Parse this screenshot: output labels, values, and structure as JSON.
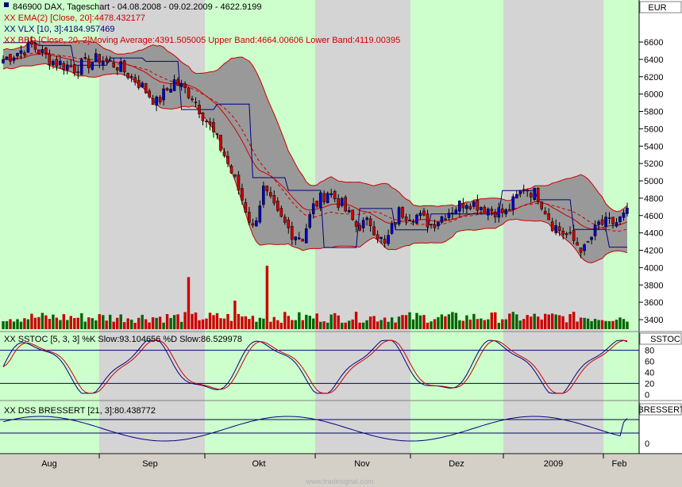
{
  "header": {
    "title": "846900  DAX, Tageschart - 04.08.2008 - 09.02.2009 - 4622.9199",
    "currency": "EUR",
    "legend": [
      {
        "text": "XX EMA(2) [Close, 20]:4478.432177",
        "color": "#cc0000"
      },
      {
        "text": "XX VLX [10, 3]:4184.957469",
        "color": "#000080"
      },
      {
        "text": "XX BBD [Close, 20, 2]Moving Average:4391.505005 Upper Band:4664.00606 Lower Band:4119.00395",
        "color": "#cc0000"
      }
    ]
  },
  "panels": {
    "sstoc": {
      "label": "XX SSTOC [5, 3, 3] %K Slow:93.104656 %D Slow:86.529978",
      "tag": "SSTOC",
      "ticks": [
        "80",
        "60",
        "40",
        "20",
        "0"
      ]
    },
    "dss": {
      "label": "XX DSS BRESSERT [21, 3]:80.438772",
      "tag": "BRESSERT",
      "ticks": [
        "0"
      ]
    }
  },
  "footer": {
    "watermark": "www.tradesignal.com"
  },
  "colors": {
    "up": "#0000cc",
    "down": "#cc0000",
    "vol_up": "#006400",
    "vol_down": "#cc0000",
    "band_fill": "#999999",
    "band_edge": "#cc0000",
    "ema": "#cc0000",
    "vlx": "#000080",
    "green_bg": "#ccffcc",
    "gray_bg": "#d4d4d4",
    "k_line": "#000080",
    "d_line": "#cc0000"
  },
  "chart_data": {
    "type": "candlestick",
    "title": "846900  DAX, Tageschart - 04.08.2008 - 09.02.2009 - 4622.9199",
    "y_axis": {
      "ticks": [
        3400,
        3600,
        3800,
        4000,
        4200,
        4400,
        4600,
        4800,
        5000,
        5200,
        5400,
        5600,
        5800,
        6000,
        6200,
        6400,
        6600
      ],
      "ylim": [
        3200,
        6820
      ]
    },
    "x_axis": {
      "month_labels": [
        "Aug",
        "Sep",
        "Okt",
        "Nov",
        "Dez",
        "2009",
        "Feb"
      ]
    },
    "ohlc_anchors_close": [
      [
        0,
        6400
      ],
      [
        8,
        6560
      ],
      [
        14,
        6380
      ],
      [
        20,
        6300
      ],
      [
        27,
        6410
      ],
      [
        32,
        6330
      ],
      [
        38,
        6130
      ],
      [
        43,
        5900
      ],
      [
        48,
        6150
      ],
      [
        53,
        5980
      ],
      [
        58,
        5620
      ],
      [
        62,
        5300
      ],
      [
        66,
        4900
      ],
      [
        70,
        4450
      ],
      [
        73,
        4900
      ],
      [
        77,
        4600
      ],
      [
        81,
        4400
      ],
      [
        84,
        4350
      ],
      [
        87,
        4700
      ],
      [
        91,
        4880
      ],
      [
        95,
        4720
      ],
      [
        99,
        4480
      ],
      [
        103,
        4520
      ],
      [
        107,
        4250
      ],
      [
        111,
        4640
      ],
      [
        116,
        4600
      ],
      [
        120,
        4500
      ],
      [
        125,
        4650
      ],
      [
        130,
        4770
      ],
      [
        136,
        4680
      ],
      [
        141,
        4630
      ],
      [
        146,
        4930
      ],
      [
        150,
        4830
      ],
      [
        154,
        4500
      ],
      [
        159,
        4340
      ],
      [
        163,
        4200
      ],
      [
        167,
        4500
      ],
      [
        172,
        4520
      ],
      [
        175,
        4620
      ]
    ],
    "volume_high_bars": [
      {
        "index": 74,
        "volume_relative": 1.0
      },
      {
        "index": 52,
        "volume_relative": 0.82
      },
      {
        "index": 65,
        "volume_relative": 0.45
      }
    ]
  }
}
